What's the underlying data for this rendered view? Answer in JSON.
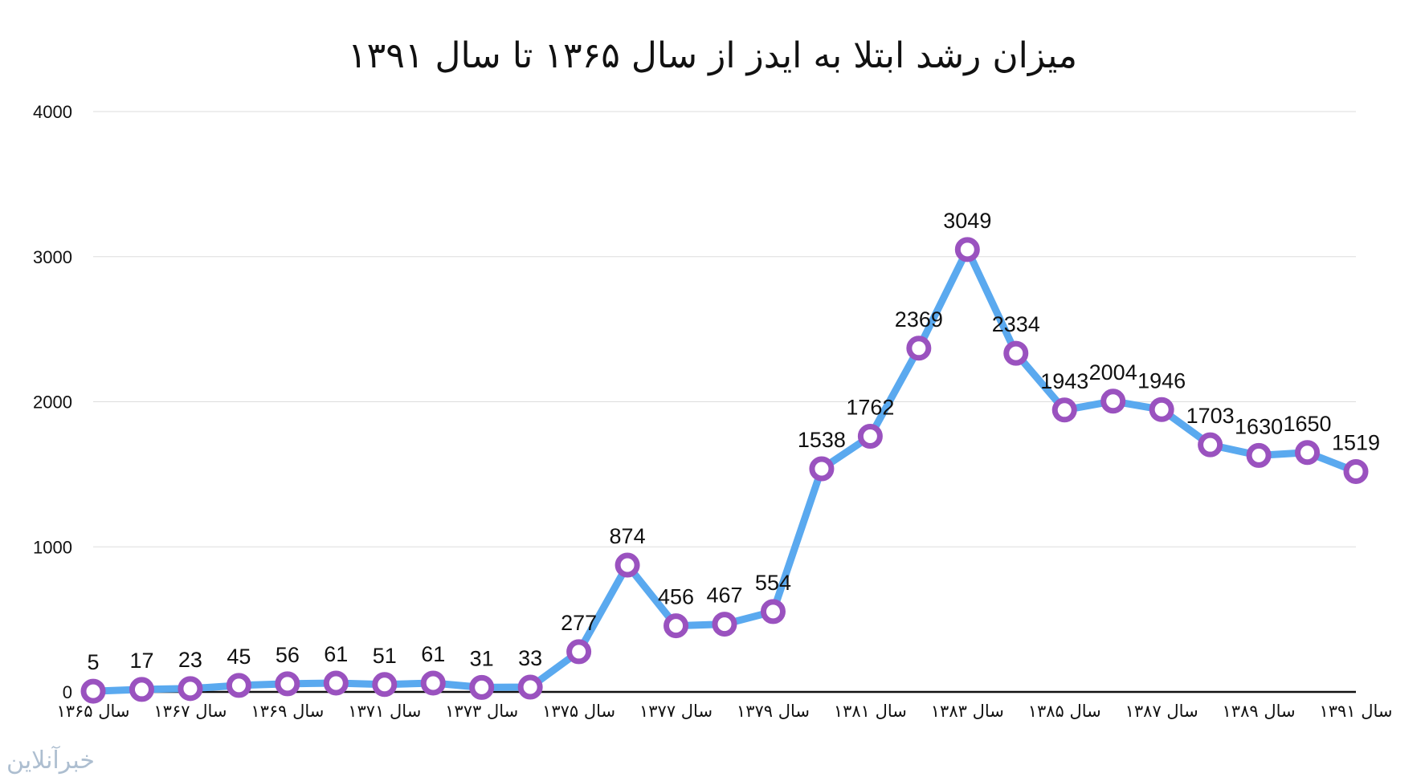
{
  "chart_data": {
    "type": "line",
    "title": "میزان رشد ابتلا به ایدز از سال ۱۳۶۵ تا سال ۱۳۹۱",
    "xlabel": "",
    "ylabel": "",
    "ylim": [
      0,
      4000
    ],
    "yticks": [
      "0",
      "1000",
      "2000",
      "3000",
      "4000"
    ],
    "categories": [
      "1365",
      "1366",
      "1367",
      "1368",
      "1369",
      "1370",
      "1371",
      "1372",
      "1373",
      "1374",
      "1375",
      "1376",
      "1377",
      "1378",
      "1379",
      "1380",
      "1381",
      "1382",
      "1383",
      "1384",
      "1385",
      "1386",
      "1387",
      "1388",
      "1389",
      "1390",
      "1391"
    ],
    "x_tick_labels": [
      {
        "index": 0,
        "label": "سال ۱۳۶۵"
      },
      {
        "index": 2,
        "label": "سال ۱۳۶۷"
      },
      {
        "index": 4,
        "label": "سال ۱۳۶۹"
      },
      {
        "index": 6,
        "label": "سال ۱۳۷۱"
      },
      {
        "index": 8,
        "label": "سال ۱۳۷۳"
      },
      {
        "index": 10,
        "label": "سال ۱۳۷۵"
      },
      {
        "index": 12,
        "label": "سال ۱۳۷۷"
      },
      {
        "index": 14,
        "label": "سال ۱۳۷۹"
      },
      {
        "index": 16,
        "label": "سال ۱۳۸۱"
      },
      {
        "index": 18,
        "label": "سال ۱۳۸۳"
      },
      {
        "index": 20,
        "label": "سال ۱۳۸۵"
      },
      {
        "index": 22,
        "label": "سال ۱۳۸۷"
      },
      {
        "index": 24,
        "label": "سال ۱۳۸۹"
      },
      {
        "index": 26,
        "label": "سال ۱۳۹۱"
      }
    ],
    "values": [
      5,
      17,
      23,
      45,
      56,
      61,
      51,
      61,
      31,
      33,
      277,
      874,
      456,
      467,
      554,
      1538,
      1762,
      2369,
      3049,
      2334,
      1943,
      2004,
      1946,
      1703,
      1630,
      1650,
      1519
    ],
    "data_labels": true,
    "grid": true,
    "legend": "none",
    "colors": {
      "line": "#5aa9ef",
      "marker_stroke": "#9a52bf",
      "marker_fill": "#ffffff",
      "grid": "#dddddd",
      "axis": "#111111"
    }
  },
  "watermark": {
    "text": "خبرآنلاین"
  }
}
